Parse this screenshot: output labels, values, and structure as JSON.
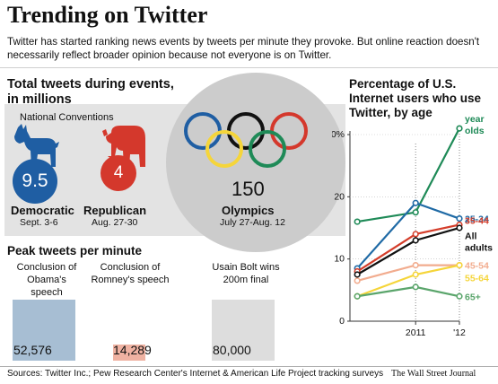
{
  "header": {
    "title": "Trending on Twitter",
    "subtitle": "Twitter has started ranking news events by tweets per minute they provoke. But online reaction doesn't necessarily reflect broader opinion because not everyone is on Twitter."
  },
  "events_panel": {
    "heading_line1": "Total tweets during events,",
    "heading_line2": "in millions",
    "conventions_label": "National Conventions",
    "events": [
      {
        "name": "Democratic",
        "dates": "Sept. 3-6",
        "total_tweets": "9.5",
        "icon": "donkey-icon",
        "color": "#1f5ea3"
      },
      {
        "name": "Republican",
        "dates": "Aug. 27-30",
        "total_tweets": "4",
        "icon": "elephant-icon",
        "color": "#d4382c"
      },
      {
        "name": "Olympics",
        "dates": "July 27-Aug. 12",
        "total_tweets": "150",
        "icon": "olympic-rings-icon",
        "color": "#cccccc"
      }
    ]
  },
  "peak_panel": {
    "heading": "Peak tweets per minute",
    "items": [
      {
        "label": "Conclusion of Obama's speech",
        "value_text": "52,576",
        "value": 52576,
        "color": "#a7bed3"
      },
      {
        "label": "Conclusion of Romney's speech",
        "value_text": "14,289",
        "value": 14289,
        "color": "#efb2a2"
      },
      {
        "label": "Usain Bolt wins 200m final",
        "value_text": "80,000",
        "value": 80000,
        "color": "#dddddd"
      }
    ]
  },
  "age_panel": {
    "heading": "Percentage of U.S. Internet users who use Twitter, by age"
  },
  "chart_data": {
    "type": "line",
    "title": "Percentage of U.S. Internet users who use Twitter, by age",
    "x": [
      2010.6,
      2011.4,
      2012.0
    ],
    "x_tick_labels": [
      "2011",
      "'12"
    ],
    "y_tick_labels": [
      "0",
      "10",
      "20",
      "30%"
    ],
    "ylim": [
      0,
      30
    ],
    "grid": "dotted vertical at 2011",
    "series": [
      {
        "name": "18-24 year olds",
        "label_lines": [
          "18-24",
          "year",
          "olds"
        ],
        "values": [
          16,
          17.5,
          31
        ],
        "color": "#1e8a57"
      },
      {
        "name": "25-34",
        "label_lines": [
          "25-34"
        ],
        "values": [
          8.5,
          19,
          16.5
        ],
        "color": "#1f6aa5"
      },
      {
        "name": "35-44",
        "label_lines": [
          "35-44"
        ],
        "values": [
          8,
          14,
          15.5
        ],
        "color": "#d43d2a"
      },
      {
        "name": "All adults",
        "label_lines": [
          "All",
          "adults"
        ],
        "values": [
          7.5,
          13,
          15
        ],
        "color": "#111111"
      },
      {
        "name": "45-54",
        "label_lines": [
          "45-54"
        ],
        "values": [
          6.5,
          9,
          9
        ],
        "color": "#f2ac8e"
      },
      {
        "name": "55-64",
        "label_lines": [
          "55-64"
        ],
        "values": [
          4,
          7.5,
          9
        ],
        "color": "#f5d53a"
      },
      {
        "name": "65+",
        "label_lines": [
          "65+"
        ],
        "values": [
          4,
          5.5,
          4
        ],
        "color": "#5aa56b"
      }
    ]
  },
  "footer": {
    "source": "Sources: Twitter Inc.; Pew Research Center's Internet & American Life Project tracking surveys",
    "credit": "The Wall Street Journal"
  }
}
